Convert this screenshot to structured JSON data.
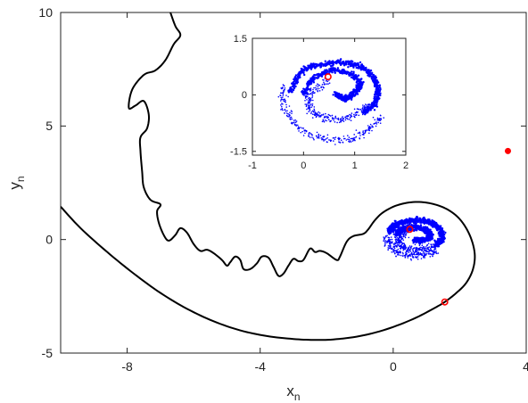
{
  "chart_data": [
    {
      "id": "main",
      "type": "scatter",
      "xlabel": "x",
      "xlabel_sub": "n",
      "ylabel": "y",
      "ylabel_sub": "n",
      "xlim": [
        -10,
        4
      ],
      "ylim": [
        -5,
        10
      ],
      "xticks": [
        -8,
        -4,
        0,
        4
      ],
      "xtick_labels": [
        "-8",
        "-4",
        "0",
        "4"
      ],
      "yticks": [
        -5,
        0,
        5,
        10
      ],
      "ytick_labels": [
        "-5",
        "0",
        "5",
        "10"
      ],
      "grid": false,
      "series": [
        {
          "kind": "curve",
          "color": "#000000",
          "points": [
            [
              -10.0,
              1.45
            ],
            [
              -9.4,
              0.5
            ],
            [
              -8.6,
              -0.55
            ],
            [
              -7.8,
              -1.5
            ],
            [
              -7.0,
              -2.35
            ],
            [
              -6.2,
              -3.05
            ],
            [
              -5.4,
              -3.6
            ],
            [
              -4.6,
              -4.0
            ],
            [
              -3.8,
              -4.25
            ],
            [
              -3.0,
              -4.38
            ],
            [
              -2.4,
              -4.42
            ],
            [
              -1.8,
              -4.4
            ],
            [
              -1.0,
              -4.25
            ],
            [
              -0.2,
              -3.95
            ],
            [
              0.6,
              -3.5
            ],
            [
              1.2,
              -3.05
            ],
            [
              1.55,
              -2.75
            ],
            [
              1.9,
              -2.35
            ],
            [
              2.2,
              -1.9
            ],
            [
              2.4,
              -1.3
            ],
            [
              2.45,
              -0.6
            ],
            [
              2.3,
              0.2
            ],
            [
              2.0,
              0.9
            ],
            [
              1.6,
              1.35
            ],
            [
              1.1,
              1.6
            ],
            [
              0.6,
              1.65
            ],
            [
              0.1,
              1.5
            ],
            [
              -0.3,
              1.2
            ],
            [
              -0.55,
              0.85
            ],
            [
              -0.75,
              0.45
            ],
            [
              -0.9,
              0.25
            ],
            [
              -1.2,
              0.15
            ],
            [
              -1.4,
              -0.1
            ],
            [
              -1.6,
              -0.75
            ],
            [
              -1.7,
              -0.9
            ],
            [
              -2.0,
              -0.6
            ],
            [
              -2.2,
              -0.5
            ],
            [
              -2.35,
              -0.55
            ],
            [
              -2.5,
              -0.4
            ],
            [
              -2.7,
              -0.9
            ],
            [
              -2.85,
              -0.95
            ],
            [
              -3.0,
              -0.85
            ],
            [
              -3.15,
              -1.15
            ],
            [
              -3.3,
              -1.5
            ],
            [
              -3.45,
              -1.6
            ],
            [
              -3.6,
              -1.2
            ],
            [
              -3.75,
              -0.8
            ],
            [
              -3.95,
              -0.75
            ],
            [
              -4.1,
              -1.05
            ],
            [
              -4.3,
              -1.3
            ],
            [
              -4.5,
              -1.3
            ],
            [
              -4.6,
              -0.9
            ],
            [
              -4.75,
              -0.75
            ],
            [
              -4.9,
              -1.0
            ],
            [
              -5.0,
              -1.15
            ],
            [
              -5.15,
              -0.9
            ],
            [
              -5.4,
              -0.6
            ],
            [
              -5.6,
              -0.45
            ],
            [
              -5.8,
              -0.5
            ],
            [
              -6.0,
              -0.2
            ],
            [
              -6.2,
              0.3
            ],
            [
              -6.4,
              0.5
            ],
            [
              -6.55,
              0.2
            ],
            [
              -6.75,
              -0.05
            ],
            [
              -6.9,
              0.2
            ],
            [
              -7.05,
              0.75
            ],
            [
              -7.1,
              1.25
            ],
            [
              -7.0,
              1.55
            ],
            [
              -7.3,
              1.75
            ],
            [
              -7.5,
              2.3
            ],
            [
              -7.55,
              3.0
            ],
            [
              -7.6,
              3.9
            ],
            [
              -7.6,
              4.5
            ],
            [
              -7.4,
              4.9
            ],
            [
              -7.35,
              5.5
            ],
            [
              -7.5,
              6.1
            ],
            [
              -7.75,
              5.9
            ],
            [
              -7.95,
              5.8
            ],
            [
              -7.85,
              6.6
            ],
            [
              -7.5,
              7.25
            ],
            [
              -7.15,
              7.45
            ],
            [
              -6.85,
              7.9
            ],
            [
              -6.6,
              8.6
            ],
            [
              -6.4,
              9.0
            ],
            [
              -6.55,
              9.4
            ],
            [
              -6.7,
              10.0
            ]
          ]
        },
        {
          "kind": "attractor-cloud",
          "color": "#0000ff",
          "centre": [
            0.5,
            0.45
          ],
          "arms": [
            [
              [
                0.1,
                0.25
              ],
              [
                0.3,
                0.45
              ],
              [
                0.6,
                0.55
              ],
              [
                0.9,
                0.45
              ],
              [
                1.1,
                0.25
              ],
              [
                1.05,
                0.05
              ],
              [
                0.85,
                -0.05
              ],
              [
                0.65,
                0.0
              ]
            ],
            [
              [
                -0.1,
                0.35
              ],
              [
                0.0,
                0.55
              ],
              [
                0.25,
                0.75
              ],
              [
                0.6,
                0.85
              ],
              [
                1.0,
                0.8
              ],
              [
                1.3,
                0.6
              ],
              [
                1.45,
                0.3
              ],
              [
                1.45,
                0.0
              ],
              [
                1.3,
                -0.2
              ]
            ],
            [
              [
                0.4,
                0.3
              ],
              [
                0.2,
                0.1
              ],
              [
                0.15,
                -0.15
              ],
              [
                0.35,
                -0.35
              ],
              [
                0.65,
                -0.45
              ],
              [
                0.95,
                -0.4
              ],
              [
                1.2,
                -0.3
              ]
            ],
            [
              [
                -0.2,
                0.1
              ],
              [
                -0.1,
                -0.25
              ],
              [
                0.15,
                -0.55
              ],
              [
                0.55,
                -0.7
              ],
              [
                0.95,
                -0.65
              ],
              [
                1.3,
                -0.5
              ]
            ]
          ]
        },
        {
          "kind": "marker",
          "shape": "filled-dot",
          "color": "#ff0000",
          "points": [
            [
              3.45,
              3.9
            ]
          ]
        },
        {
          "kind": "marker",
          "shape": "open-circle",
          "color": "#ff0000",
          "points": [
            [
              0.5,
              0.45
            ],
            [
              1.55,
              -2.75
            ]
          ]
        }
      ]
    },
    {
      "id": "inset",
      "type": "scatter",
      "xlim": [
        -1,
        2
      ],
      "ylim": [
        -1.6,
        1.5
      ],
      "xticks": [
        -1,
        0,
        1,
        2
      ],
      "xtick_labels": [
        "-1",
        "0",
        "1",
        "2"
      ],
      "yticks": [
        -1.5,
        0,
        1.5
      ],
      "ytick_labels": [
        "-1.5",
        "0",
        "1.5"
      ],
      "grid": false,
      "series": [
        {
          "kind": "attractor-cloud",
          "color": "#0000ff",
          "centre": [
            0.5,
            0.45
          ],
          "arms": [
            [
              [
                0.0,
                0.0
              ],
              [
                0.2,
                0.45
              ],
              [
                0.55,
                0.65
              ],
              [
                0.9,
                0.55
              ],
              [
                1.1,
                0.3
              ],
              [
                1.0,
                0.05
              ],
              [
                0.8,
                -0.1
              ],
              [
                0.65,
                0.0
              ]
            ],
            [
              [
                -0.25,
                0.1
              ],
              [
                -0.05,
                0.6
              ],
              [
                0.3,
                0.8
              ],
              [
                0.75,
                0.85
              ],
              [
                1.1,
                0.75
              ],
              [
                1.35,
                0.5
              ],
              [
                1.45,
                0.15
              ],
              [
                1.4,
                -0.2
              ],
              [
                1.2,
                -0.45
              ]
            ],
            [
              [
                0.45,
                0.35
              ],
              [
                0.15,
                0.05
              ],
              [
                0.1,
                -0.3
              ],
              [
                0.3,
                -0.55
              ],
              [
                0.6,
                -0.65
              ],
              [
                0.95,
                -0.55
              ],
              [
                1.2,
                -0.35
              ]
            ],
            [
              [
                -0.4,
                0.2
              ],
              [
                -0.35,
                -0.35
              ],
              [
                -0.1,
                -0.85
              ],
              [
                0.35,
                -1.15
              ],
              [
                0.85,
                -1.2
              ],
              [
                1.25,
                -0.95
              ],
              [
                1.5,
                -0.6
              ]
            ]
          ]
        },
        {
          "kind": "marker",
          "shape": "open-circle",
          "color": "#ff0000",
          "points": [
            [
              0.48,
              0.48
            ]
          ]
        }
      ]
    }
  ]
}
